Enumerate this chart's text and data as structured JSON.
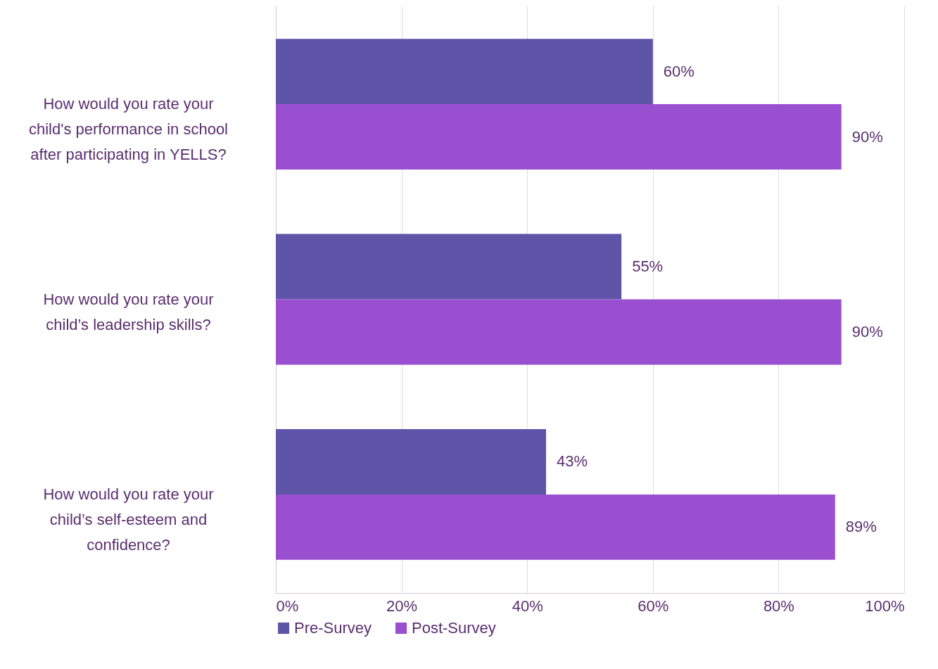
{
  "chart_data": {
    "type": "bar",
    "orientation": "horizontal",
    "categories": [
      "How would you rate your child's performance in school after participating in YELLS?",
      "How would you rate your child’s leadership skills?",
      "How would you rate your child’s self-esteem and confidence?"
    ],
    "series": [
      {
        "name": "Pre-Survey",
        "color": "#5e54a8",
        "values": [
          60,
          55,
          43
        ],
        "value_labels": [
          "60%",
          "55%",
          "43%"
        ]
      },
      {
        "name": "Post-Survey",
        "color": "#9a4fd0",
        "values": [
          90,
          90,
          89
        ],
        "value_labels": [
          "90%",
          "90%",
          "89%"
        ]
      }
    ],
    "xlim": [
      0,
      100
    ],
    "xticks": [
      {
        "value": 0,
        "label": "0%"
      },
      {
        "value": 20,
        "label": "20%"
      },
      {
        "value": 40,
        "label": "40%"
      },
      {
        "value": 60,
        "label": "60%"
      },
      {
        "value": 80,
        "label": "80%"
      },
      {
        "value": 100,
        "label": "100%"
      }
    ],
    "grid": "x",
    "legend": "bottom"
  }
}
